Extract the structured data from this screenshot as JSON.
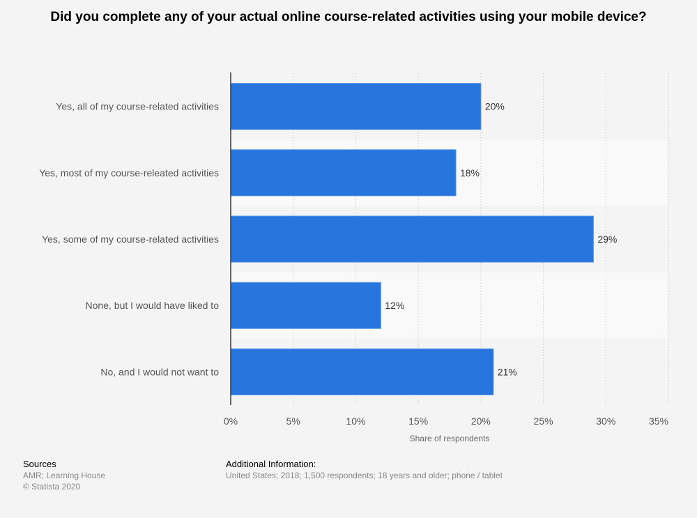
{
  "chart_data": {
    "type": "bar",
    "orientation": "horizontal",
    "title": "Did you complete any of your actual online course-related activities using your mobile device?",
    "categories": [
      "Yes, all of my course-related activities",
      "Yes, most of my course-releated activities",
      "Yes, some of my course-related activities",
      "None, but I would have liked to",
      "No, and I would not want to"
    ],
    "values": [
      20,
      18,
      29,
      12,
      21
    ],
    "value_labels": [
      "20%",
      "18%",
      "29%",
      "12%",
      "21%"
    ],
    "xlabel": "Share of respondents",
    "ylabel": "",
    "xlim": [
      0,
      35
    ],
    "xticks": [
      0,
      5,
      10,
      15,
      20,
      25,
      30,
      35
    ],
    "xtick_labels": [
      "0%",
      "5%",
      "10%",
      "15%",
      "20%",
      "25%",
      "30%",
      "35%"
    ],
    "grid": true,
    "legend": "none",
    "bar_color": "#2876dd"
  },
  "footer": {
    "sources_heading": "Sources",
    "sources_lines": [
      "AMR; Learning House",
      "© Statista 2020"
    ],
    "additional_heading": "Additional Information:",
    "additional_text": "United States; 2018; 1,500 respondents; 18 years and older; phone / tablet"
  }
}
